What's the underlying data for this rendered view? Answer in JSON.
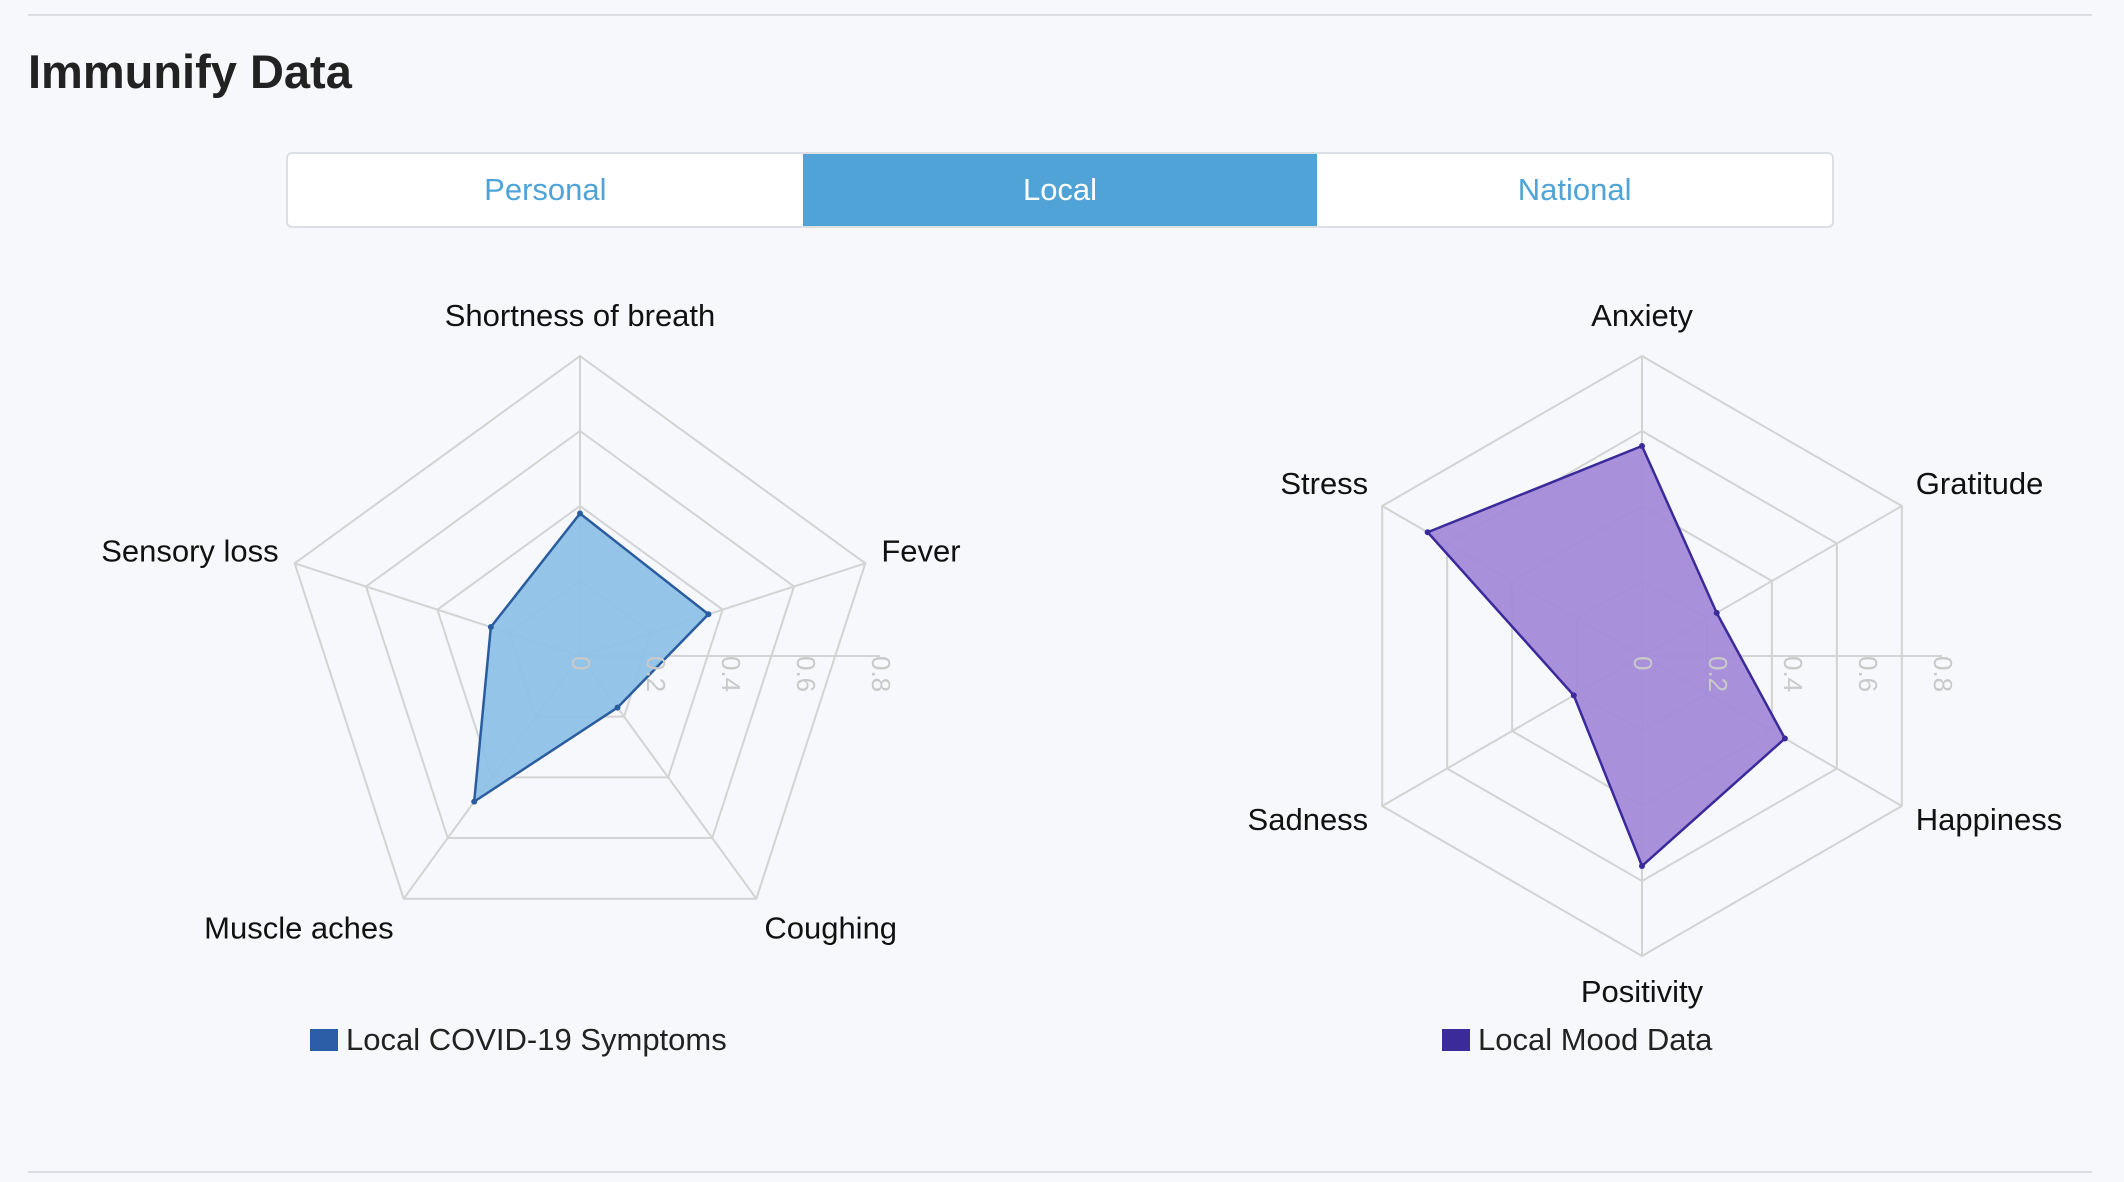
{
  "page": {
    "title": "Immunify Data"
  },
  "tabs": [
    {
      "label": "Personal",
      "active": false
    },
    {
      "label": "Local",
      "active": true
    },
    {
      "label": "National",
      "active": false
    }
  ],
  "colors": {
    "accent": "#4fa3d7",
    "symptoms_fill": "#8ec1e6",
    "symptoms_stroke": "#2a5d9f",
    "symptoms_legend": "#2b5ea7",
    "mood_fill": "#a38ad8",
    "mood_stroke": "#3b2a9a",
    "mood_legend": "#3b2a9a"
  },
  "chart_data": [
    {
      "type": "radar",
      "series": [
        {
          "name": "Local COVID-19 Symptoms",
          "values": [
            0.38,
            0.36,
            0.17,
            0.48,
            0.25
          ]
        }
      ],
      "categories": [
        "Shortness of breath",
        "Fever",
        "Coughing",
        "Muscle aches",
        "Sensory loss"
      ],
      "ticks": [
        "0",
        "0.2",
        "0.4",
        "0.6",
        "0.8"
      ],
      "rmax": 0.8,
      "grid": true,
      "legend_position": "bottom"
    },
    {
      "type": "radar",
      "series": [
        {
          "name": "Local Mood Data",
          "values": [
            0.56,
            0.23,
            0.44,
            0.56,
            0.21,
            0.66
          ]
        }
      ],
      "categories": [
        "Anxiety",
        "Gratitude",
        "Happiness",
        "Positivity",
        "Sadness",
        "Stress"
      ],
      "ticks": [
        "0",
        "0.2",
        "0.4",
        "0.6",
        "0.8"
      ],
      "rmax": 0.8,
      "grid": true,
      "legend_position": "bottom"
    }
  ]
}
